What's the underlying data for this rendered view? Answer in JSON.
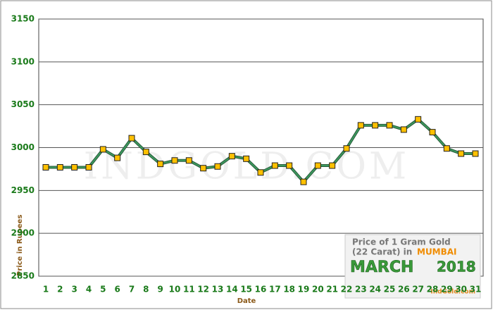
{
  "chart_data": {
    "type": "line",
    "categories": [
      "1",
      "2",
      "3",
      "4",
      "5",
      "6",
      "7",
      "8",
      "9",
      "10",
      "11",
      "12",
      "13",
      "14",
      "15",
      "16",
      "17",
      "18",
      "19",
      "20",
      "21",
      "22",
      "23",
      "24",
      "25",
      "26",
      "27",
      "28",
      "29",
      "30",
      "31"
    ],
    "series": [
      {
        "name": "Price",
        "color": "#3c9a5f",
        "values": [
          2977,
          2977,
          2977,
          2977,
          2998,
          2988,
          3011,
          2995,
          2981,
          2985,
          2985,
          2976,
          2978,
          2990,
          2987,
          2971,
          2979,
          2979,
          2960,
          2979,
          2979,
          2999,
          3026,
          3026,
          3026,
          3021,
          3033,
          3018,
          2999,
          2993,
          2993
        ]
      }
    ],
    "ylim": [
      2850,
      3150
    ],
    "yticks": [
      2850,
      2900,
      2950,
      3000,
      3050,
      3100,
      3150
    ],
    "grid": true,
    "ylabel": "Price in Rupees",
    "xlabel": "Date",
    "watermark": "INDGOLD.COM",
    "legend_box": {
      "line1": "Price of 1 Gram Gold",
      "line2": "(22 Carat) in",
      "city": "MUMBAI",
      "month": "MARCH",
      "year": "2018",
      "site": "IndGold.com"
    },
    "marker_color": "#ffc000"
  }
}
